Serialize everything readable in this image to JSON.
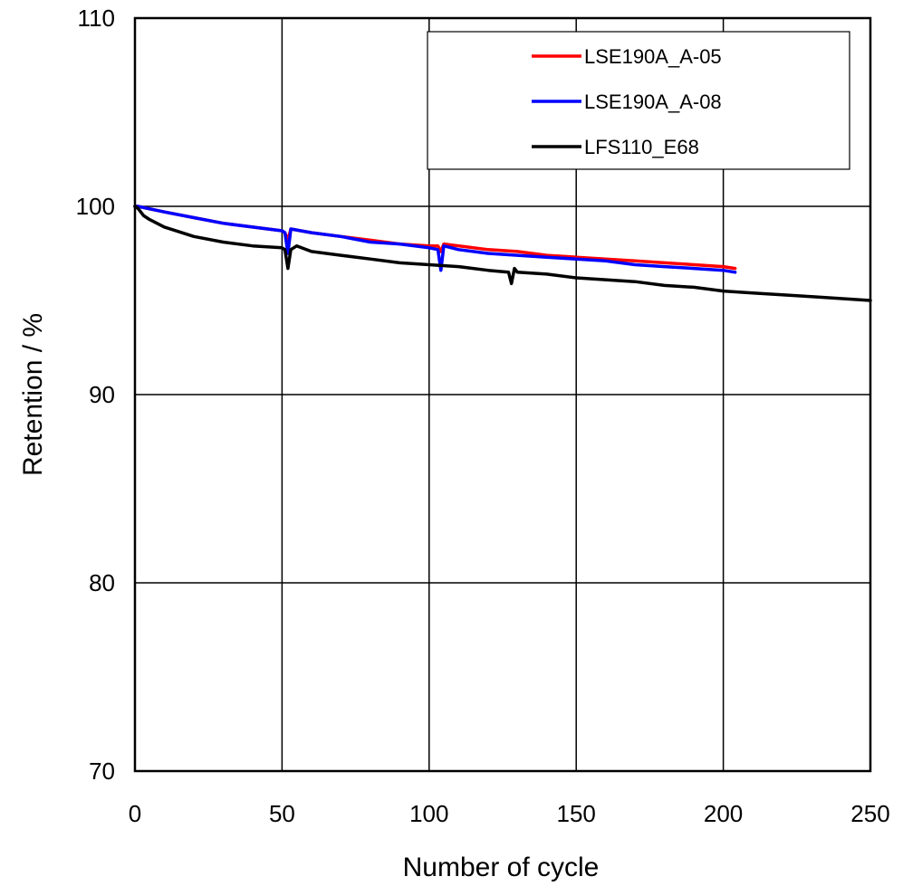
{
  "chart_data": {
    "type": "line",
    "title": "",
    "xlabel": "Number of cycle",
    "ylabel": "Retention / %",
    "xlim": [
      0,
      250
    ],
    "ylim": [
      70,
      110
    ],
    "xticks": [
      0,
      50,
      100,
      150,
      200,
      250
    ],
    "yticks": [
      70,
      80,
      90,
      100,
      110
    ],
    "grid": true,
    "legend_position": "top-right",
    "series": [
      {
        "name": "LSE190A_A-05",
        "color": "#ff0000",
        "x": [
          0,
          1,
          10,
          20,
          30,
          40,
          50,
          51,
          52,
          53,
          60,
          70,
          80,
          90,
          100,
          103,
          104,
          105,
          110,
          120,
          130,
          140,
          150,
          160,
          170,
          180,
          190,
          200,
          204
        ],
        "y": [
          100,
          100,
          99.7,
          99.4,
          99.1,
          98.9,
          98.7,
          98.6,
          98.2,
          98.8,
          98.6,
          98.4,
          98.2,
          98.0,
          97.9,
          97.9,
          97.6,
          98.0,
          97.9,
          97.7,
          97.6,
          97.4,
          97.3,
          97.2,
          97.1,
          97.0,
          96.9,
          96.8,
          96.7
        ]
      },
      {
        "name": "LSE190A_A-08",
        "color": "#0000ff",
        "x": [
          0,
          1,
          10,
          20,
          30,
          40,
          50,
          51,
          52,
          53,
          60,
          70,
          80,
          90,
          100,
          103,
          104,
          105,
          110,
          120,
          130,
          140,
          150,
          160,
          170,
          180,
          190,
          200,
          204
        ],
        "y": [
          100,
          100,
          99.7,
          99.4,
          99.1,
          98.9,
          98.7,
          98.6,
          97.5,
          98.8,
          98.6,
          98.4,
          98.1,
          98.0,
          97.8,
          97.7,
          96.6,
          97.9,
          97.7,
          97.5,
          97.4,
          97.3,
          97.2,
          97.1,
          96.9,
          96.8,
          96.7,
          96.6,
          96.5
        ]
      },
      {
        "name": "LFS110_E68",
        "color": "#000000",
        "x": [
          0,
          1,
          3,
          5,
          10,
          20,
          30,
          40,
          50,
          51,
          52,
          53,
          55,
          60,
          70,
          80,
          90,
          100,
          110,
          120,
          127,
          128,
          129,
          130,
          140,
          150,
          160,
          170,
          180,
          190,
          200,
          210,
          220,
          230,
          240,
          250
        ],
        "y": [
          100,
          99.9,
          99.5,
          99.3,
          98.9,
          98.4,
          98.1,
          97.9,
          97.8,
          97.7,
          96.7,
          97.7,
          97.9,
          97.6,
          97.4,
          97.2,
          97.0,
          96.9,
          96.8,
          96.6,
          96.5,
          95.9,
          96.7,
          96.5,
          96.4,
          96.2,
          96.1,
          96.0,
          95.8,
          95.7,
          95.5,
          95.4,
          95.3,
          95.2,
          95.1,
          95.0
        ]
      }
    ]
  }
}
